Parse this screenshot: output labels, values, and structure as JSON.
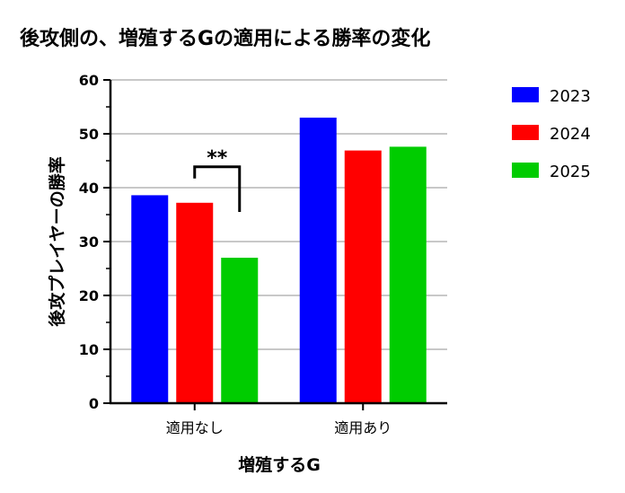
{
  "chart_data": {
    "type": "bar",
    "title": "後攻側の、増殖するGの適用による勝率の変化",
    "xlabel": "増殖するG",
    "ylabel": "後攻プレイヤーの勝率",
    "categories": [
      "適用なし",
      "適用あり"
    ],
    "series": [
      {
        "name": "2023",
        "color": "#0000ff",
        "values": [
          38.6,
          53.0
        ]
      },
      {
        "name": "2024",
        "color": "#ff0000",
        "values": [
          37.2,
          46.9
        ]
      },
      {
        "name": "2025",
        "color": "#00cc00",
        "values": [
          27.0,
          47.6
        ]
      }
    ],
    "ylim": [
      0,
      60
    ],
    "yticks": [
      0,
      10,
      20,
      30,
      40,
      50,
      60
    ],
    "grid": true,
    "legend": "right",
    "annotations": [
      {
        "text": "**",
        "category": "適用なし",
        "from_series": "2024",
        "to_series": "2025"
      }
    ]
  }
}
